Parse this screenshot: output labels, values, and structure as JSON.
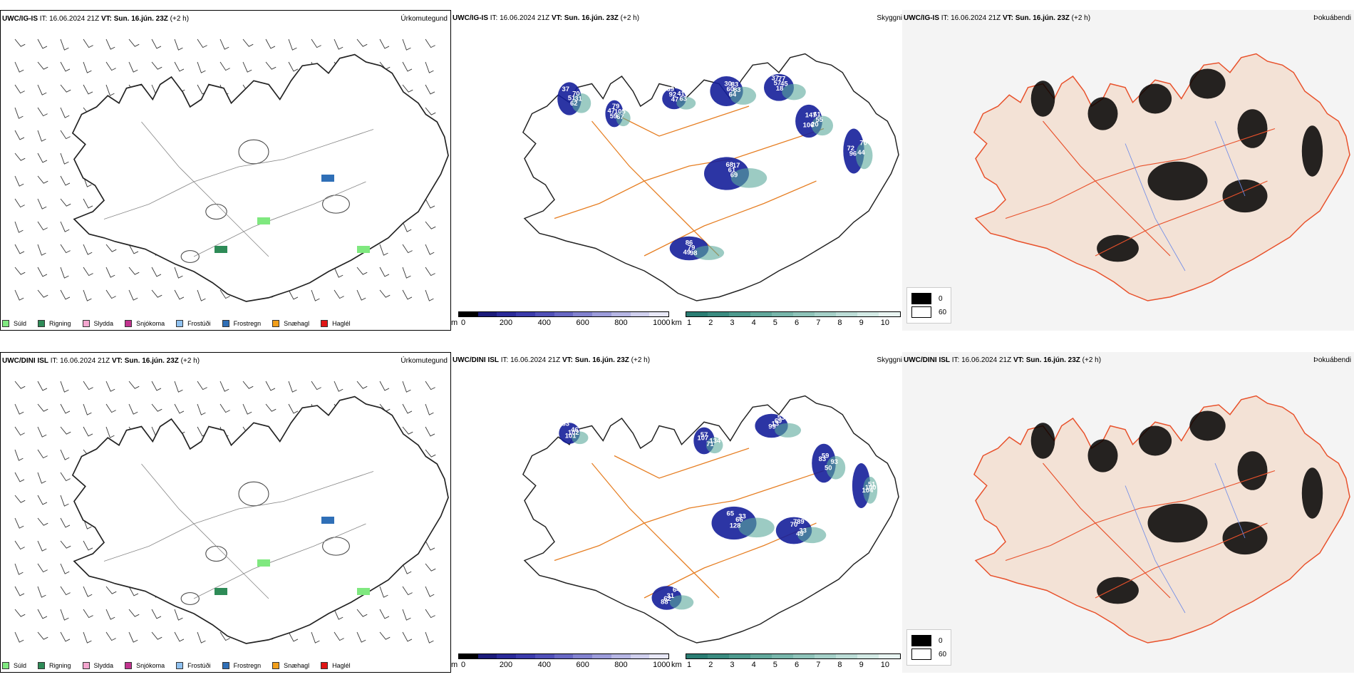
{
  "rows": [
    {
      "model": "UWC/IG-IS",
      "it_label": "IT:",
      "it_value": "16.06.2024 21Z",
      "vt_label": "VT:",
      "vt_value": "Sun. 16.jún. 23Z",
      "lead": "(+2 h)",
      "precip_title": "Úrkomutegund",
      "cloud_title": "Skyggni",
      "fog_title": "Þokuábendi",
      "cloud_labels": [
        "37",
        "67",
        "47",
        "83",
        "45",
        "147",
        "17",
        "98",
        "96",
        "31",
        "105",
        "92",
        "83",
        "77",
        "106",
        "69",
        "79",
        "72",
        "70",
        "79",
        "69",
        "64",
        "18",
        "55",
        "61",
        "86",
        "70",
        "62",
        "59",
        "63",
        "60",
        "57",
        "61",
        "68",
        "49",
        "44",
        "51",
        "47",
        "41",
        "30",
        "37",
        "20"
      ]
    },
    {
      "model": "UWC/DINI ISL",
      "it_label": "IT:",
      "it_value": "16.06.2024 21Z",
      "vt_label": "VT:",
      "vt_value": "Sun. 16.jún. 23Z",
      "lead": "(+2 h)",
      "precip_title": "Úrkomutegund",
      "cloud_title": "Skyggni",
      "fog_title": "Þokuábendi",
      "cloud_labels": [
        "83",
        "71",
        "99",
        "93",
        "66",
        "70",
        "64",
        "104",
        "101",
        "134",
        "13",
        "83",
        "33",
        "789",
        "88",
        "100",
        "102",
        "107",
        "69",
        "59",
        "65",
        "49",
        "62",
        "51",
        "46",
        "57",
        "53",
        "50",
        "128",
        "33",
        "31"
      ]
    }
  ],
  "precip_legend": [
    {
      "label": "Súld",
      "color": "#7fe87f"
    },
    {
      "label": "Rigning",
      "color": "#2e8b57"
    },
    {
      "label": "Slydda",
      "color": "#f4a6cf"
    },
    {
      "label": "Snjókoma",
      "color": "#c2338f"
    },
    {
      "label": "Frostúði",
      "color": "#8fc1f0"
    },
    {
      "label": "Frostregn",
      "color": "#2f6fb7"
    },
    {
      "label": "Snæhagl",
      "color": "#f29f1a"
    },
    {
      "label": "Haglél",
      "color": "#e01515"
    }
  ],
  "height_bar": {
    "unit": "m",
    "ticks": [
      "0",
      "200",
      "400",
      "600",
      "800",
      "1000"
    ],
    "colors": [
      "#000000",
      "#1b1b7a",
      "#2a2a99",
      "#3b3bab",
      "#5050b8",
      "#6868c4",
      "#8282cf",
      "#9c9cda",
      "#b6b6e4",
      "#d0d0ee",
      "#e8e8f7"
    ]
  },
  "km_bar": {
    "unit": "km",
    "ticks": [
      "1",
      "2",
      "3",
      "4",
      "5",
      "6",
      "7",
      "8",
      "9",
      "10"
    ],
    "colors": [
      "#2a7d73",
      "#3a8b80",
      "#4d9a8e",
      "#62a89c",
      "#78b6ab",
      "#8ec3b9",
      "#a5d0c8",
      "#bcddd7",
      "#d3eae5",
      "#e9f5f2"
    ]
  },
  "fog_legend": [
    {
      "label": "0",
      "color": "#000000"
    },
    {
      "label": "60",
      "color": "#ffffff"
    }
  ],
  "colors": {
    "coast": "#222222",
    "roads": "#e67e22",
    "fog_land": "#f3e2d6",
    "fog_roads": "#e8502a",
    "rivers": "#6f8be8",
    "cloud_blue": "#151f9a",
    "cloud_teal": "#5aa89b"
  }
}
